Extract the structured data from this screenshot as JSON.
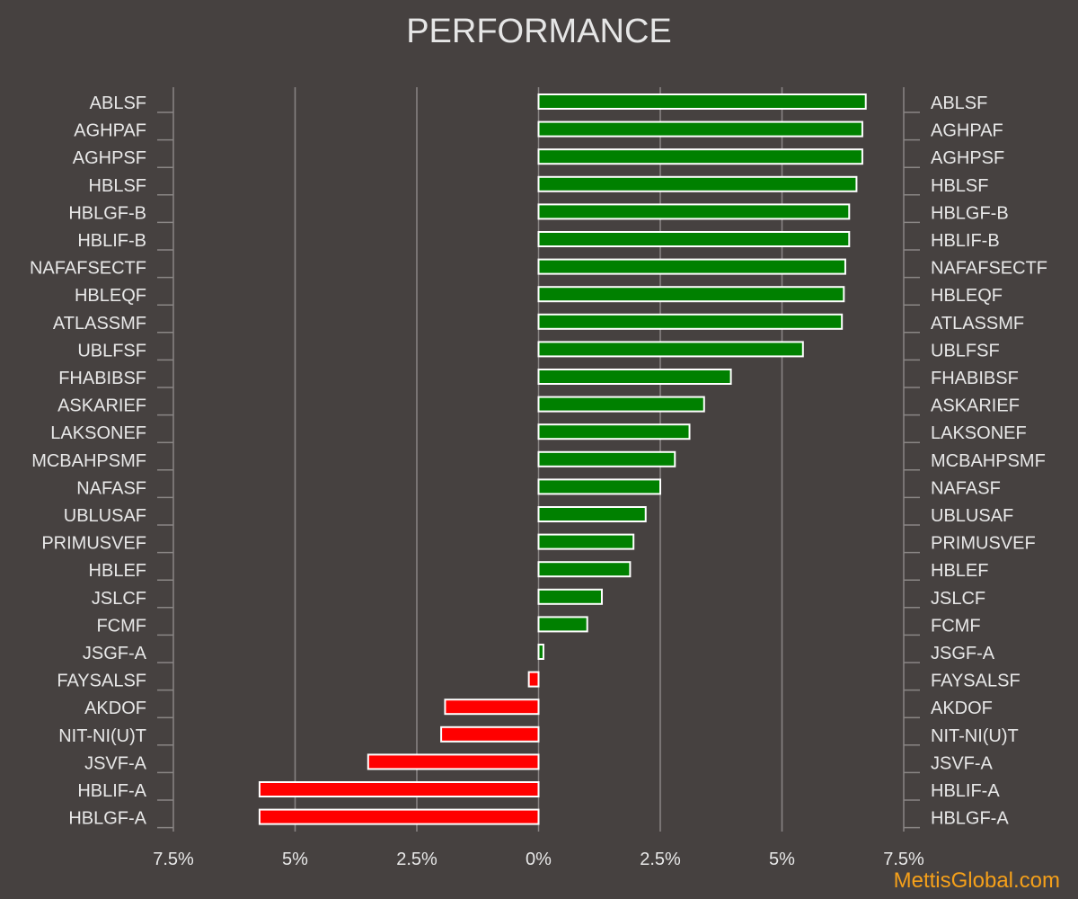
{
  "chart_data": {
    "type": "bar",
    "orientation": "horizontal",
    "title": "PERFORMANCE",
    "xlabel": "",
    "ylabel": "",
    "xlim": [
      -7.5,
      7.5
    ],
    "xticks": [
      -7.5,
      -5,
      -2.5,
      0,
      2.5,
      5,
      7.5
    ],
    "xtick_labels": [
      "7.5%",
      "5%",
      "2.5%",
      "0%",
      "2.5%",
      "5%",
      "7.5%"
    ],
    "grid": "vertical",
    "labels_on_both_sides": true,
    "positive_color": "#008000",
    "negative_color": "#ff0000",
    "bar_edge_color": "#ffffff",
    "categories": [
      "ABLSF",
      "AGHPAF",
      "AGHPSF",
      "HBLSF",
      "HBLGF-B",
      "HBLIF-B",
      "NAFAFSECTF",
      "HBLEQF",
      "ATLASSMF",
      "UBLFSF",
      "FHABIBSF",
      "ASKARIEF",
      "LAKSONEF",
      "MCBAHPSMF",
      "NAFASF",
      "UBLUSAF",
      "PRIMUSVEF",
      "HBLEF",
      "JSLCF",
      "FCMF",
      "JSGF-A",
      "FAYSALSF",
      "AKDOF",
      "NIT-NI(U)T",
      "JSVF-A",
      "HBLIF-A",
      "HBLGF-A"
    ],
    "values": [
      6.72,
      6.65,
      6.65,
      6.53,
      6.38,
      6.38,
      6.3,
      6.27,
      6.23,
      5.43,
      3.95,
      3.4,
      3.1,
      2.8,
      2.5,
      2.2,
      1.95,
      1.88,
      1.3,
      1.0,
      0.1,
      -0.2,
      -1.92,
      -2.0,
      -3.5,
      -5.73,
      -5.73
    ]
  },
  "watermark": "MettisGlobal.com"
}
